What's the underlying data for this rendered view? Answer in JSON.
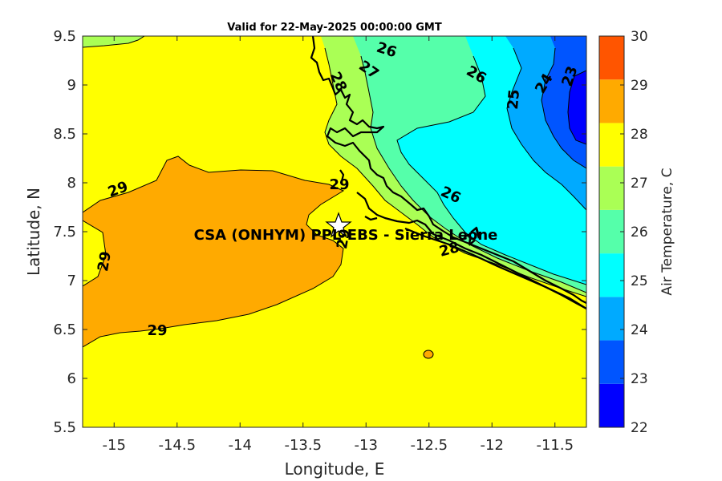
{
  "title": "Valid for 22-May-2025 00:00:00 GMT",
  "site_label": "CSA (ONHYM) PPL-EBS  - Sierra Leone",
  "colorbar": {
    "label": "Air Temperature, C",
    "ticks": [
      "22",
      "23",
      "24",
      "25",
      "26",
      "27",
      "28",
      "29",
      "30"
    ],
    "colors": [
      "#0000ff",
      "#0055ff",
      "#00aaff",
      "#00ffff",
      "#55ffaa",
      "#aaff55",
      "#ffff00",
      "#ffaa00",
      "#ff5500"
    ]
  },
  "contour_labels": [
    "26",
    "26",
    "27",
    "28",
    "25",
    "24",
    "23",
    "29",
    "29",
    "29",
    "29",
    "26",
    "28",
    "27",
    "29"
  ],
  "chart_data": {
    "type": "heatmap",
    "title": "Valid for 22-May-2025 00:00:00 GMT",
    "xlabel": "Longitude, E",
    "ylabel": "Latitude, N",
    "xlim": [
      -15.25,
      -11.25
    ],
    "ylim": [
      5.5,
      9.5
    ],
    "xticks": [
      "-15",
      "-14.5",
      "-14",
      "-13.5",
      "-13",
      "-12.5",
      "-12",
      "-11.5"
    ],
    "yticks": [
      "5.5",
      "6",
      "6.5",
      "7",
      "7.5",
      "8",
      "8.5",
      "9",
      "9.5"
    ],
    "colorbar_range": [
      22,
      30
    ],
    "colorbar_label": "Air Temperature, C",
    "site": {
      "name": "CSA (ONHYM) PPL-EBS  - Sierra Leone",
      "lon": -13.22,
      "lat": 7.59
    },
    "contour_levels": [
      22,
      23,
      24,
      25,
      26,
      27,
      28,
      29,
      30
    ]
  }
}
